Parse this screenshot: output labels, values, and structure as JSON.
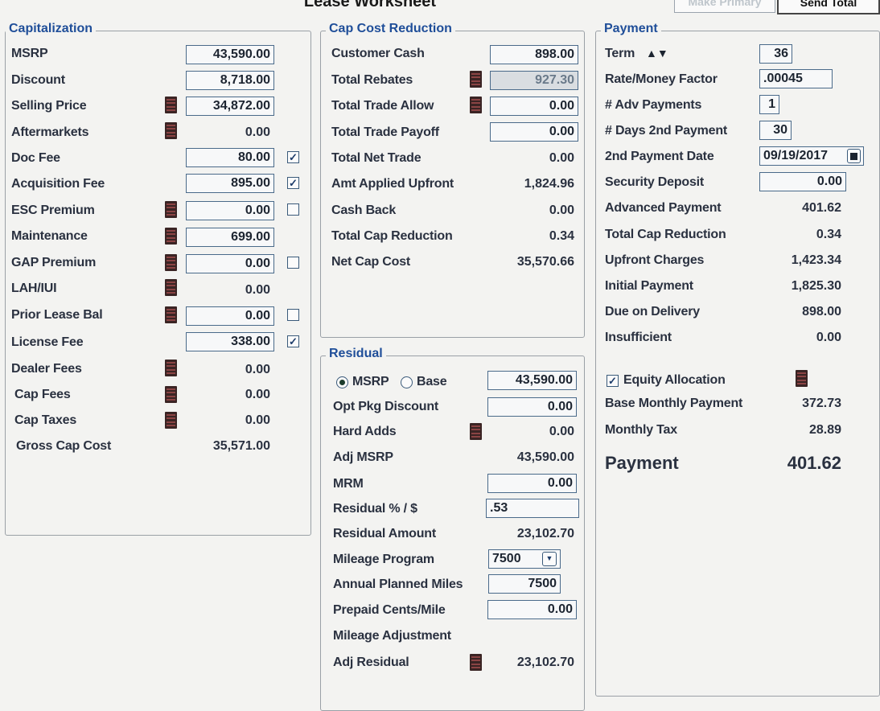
{
  "header": {
    "title": "Lease Worksheet",
    "make_primary": "Make Primary",
    "send_total": "Send Total"
  },
  "capitalization": {
    "legend": "Capitalization",
    "msrp": {
      "label": "MSRP",
      "value": "43,590.00"
    },
    "discount": {
      "label": "Discount",
      "value": "8,718.00"
    },
    "selling_price": {
      "label": "Selling Price",
      "value": "34,872.00"
    },
    "aftermarkets": {
      "label": "Aftermarkets",
      "value": "0.00"
    },
    "doc_fee": {
      "label": "Doc Fee",
      "value": "80.00",
      "checked": true
    },
    "acquisition_fee": {
      "label": "Acquisition Fee",
      "value": "895.00",
      "checked": true
    },
    "esc_premium": {
      "label": "ESC Premium",
      "value": "0.00",
      "checked": false
    },
    "maintenance": {
      "label": "Maintenance",
      "value": "699.00"
    },
    "gap_premium": {
      "label": "GAP Premium",
      "value": "0.00",
      "checked": false
    },
    "lah_iui": {
      "label": "LAH/IUI",
      "value": "0.00"
    },
    "prior_lease_bal": {
      "label": "Prior Lease Bal",
      "value": "0.00",
      "checked": false
    },
    "license_fee": {
      "label": "License Fee",
      "value": "338.00",
      "checked": true
    },
    "dealer_fees": {
      "label": "Dealer Fees",
      "value": "0.00"
    },
    "cap_fees": {
      "label": "Cap Fees",
      "value": "0.00"
    },
    "cap_taxes": {
      "label": "Cap Taxes",
      "value": "0.00"
    },
    "gross_cap_cost": {
      "label": "Gross Cap Cost",
      "value": "35,571.00"
    }
  },
  "cap_cost_reduction": {
    "legend": "Cap Cost Reduction",
    "customer_cash": {
      "label": "Customer Cash",
      "value": "898.00"
    },
    "total_rebates": {
      "label": "Total Rebates",
      "value": "927.30"
    },
    "total_trade_allow": {
      "label": "Total Trade Allow",
      "value": "0.00"
    },
    "total_trade_payoff": {
      "label": "Total Trade Payoff",
      "value": "0.00"
    },
    "total_net_trade": {
      "label": "Total Net Trade",
      "value": "0.00"
    },
    "amt_applied_upfront": {
      "label": "Amt Applied Upfront",
      "value": "1,824.96"
    },
    "cash_back": {
      "label": "Cash Back",
      "value": "0.00"
    },
    "total_cap_reduction": {
      "label": "Total Cap Reduction",
      "value": "0.34"
    },
    "net_cap_cost": {
      "label": "Net Cap Cost",
      "value": "35,570.66"
    }
  },
  "residual": {
    "legend": "Residual",
    "msrp_option": "MSRP",
    "base_option": "Base",
    "selected_option": "MSRP",
    "base_value": "43,590.00",
    "opt_pkg_discount": {
      "label": "Opt Pkg Discount",
      "value": "0.00"
    },
    "hard_adds": {
      "label": "Hard Adds",
      "value": "0.00"
    },
    "adj_msrp": {
      "label": "Adj MSRP",
      "value": "43,590.00"
    },
    "mrm": {
      "label": "MRM",
      "value": "0.00"
    },
    "residual_pct": {
      "label": "Residual % / $",
      "value": ".53"
    },
    "residual_amount": {
      "label": "Residual Amount",
      "value": "23,102.70"
    },
    "mileage_program": {
      "label": "Mileage Program",
      "value": "7500"
    },
    "annual_planned_miles": {
      "label": "Annual Planned Miles",
      "value": "7500"
    },
    "prepaid_cents_mile": {
      "label": "Prepaid Cents/Mile",
      "value": "0.00"
    },
    "mileage_adjustment": {
      "label": "Mileage Adjustment"
    },
    "adj_residual": {
      "label": "Adj Residual",
      "value": "23,102.70"
    }
  },
  "payment": {
    "legend": "Payment",
    "term": {
      "label": "Term",
      "value": "36"
    },
    "rate_money_factor": {
      "label": "Rate/Money Factor",
      "value": ".00045"
    },
    "adv_payments": {
      "label": "# Adv Payments",
      "value": "1"
    },
    "days_2nd_payment": {
      "label": "# Days 2nd Payment",
      "value": "30"
    },
    "second_payment_date": {
      "label": "2nd Payment Date",
      "value": "09/19/2017"
    },
    "security_deposit": {
      "label": "Security Deposit",
      "value": "0.00"
    },
    "advanced_payment": {
      "label": "Advanced Payment",
      "value": "401.62"
    },
    "total_cap_reduction": {
      "label": "Total Cap Reduction",
      "value": "0.34"
    },
    "upfront_charges": {
      "label": "Upfront Charges",
      "value": "1,423.34"
    },
    "initial_payment": {
      "label": "Initial Payment",
      "value": "1,825.30"
    },
    "due_on_delivery": {
      "label": "Due on Delivery",
      "value": "898.00"
    },
    "insufficient": {
      "label": "Insufficient",
      "value": "0.00"
    },
    "equity_allocation": {
      "label": "Equity Allocation",
      "checked": true
    },
    "base_monthly_payment": {
      "label": "Base Monthly Payment",
      "value": "372.73"
    },
    "monthly_tax": {
      "label": "Monthly Tax",
      "value": "28.89"
    },
    "payment": {
      "label": "Payment",
      "value": "401.62"
    }
  }
}
